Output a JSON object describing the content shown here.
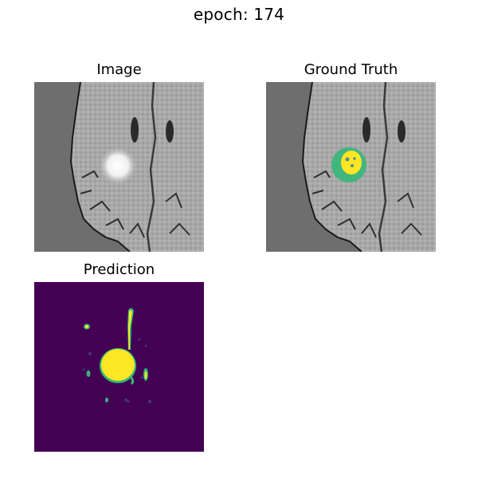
{
  "figure": {
    "suptitle": "epoch: 174"
  },
  "panels": [
    {
      "title": "Image",
      "kind": "mri-slice"
    },
    {
      "title": "Ground Truth",
      "kind": "mri-slice-with-mask-overlay"
    },
    {
      "title": "Prediction",
      "kind": "prediction-mask"
    }
  ],
  "colors": {
    "background_gray": "#6e6e6e",
    "mask_dark": "#440154",
    "mask_teal": "#35b779",
    "mask_yellow": "#fde725"
  }
}
